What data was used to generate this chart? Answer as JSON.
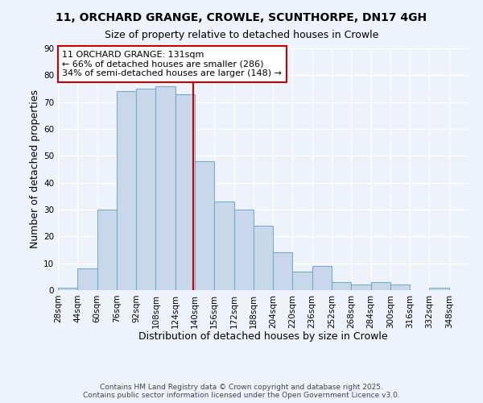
{
  "title": "11, ORCHARD GRANGE, CROWLE, SCUNTHORPE, DN17 4GH",
  "subtitle": "Size of property relative to detached houses in Crowle",
  "xlabel": "Distribution of detached houses by size in Crowle",
  "ylabel": "Number of detached properties",
  "bar_color": "#c8d8ea",
  "bar_edge_color": "#7aaac8",
  "background_color": "#eef2fb",
  "grid_color": "#ffffff",
  "bin_labels": [
    "28sqm",
    "44sqm",
    "60sqm",
    "76sqm",
    "92sqm",
    "108sqm",
    "124sqm",
    "140sqm",
    "156sqm",
    "172sqm",
    "188sqm",
    "204sqm",
    "220sqm",
    "236sqm",
    "252sqm",
    "268sqm",
    "284sqm",
    "300sqm",
    "316sqm",
    "332sqm",
    "348sqm"
  ],
  "bin_edges": [
    20,
    36,
    52,
    68,
    84,
    100,
    116,
    132,
    148,
    164,
    180,
    196,
    212,
    228,
    244,
    260,
    276,
    292,
    308,
    324,
    340,
    356
  ],
  "counts": [
    1,
    8,
    30,
    74,
    75,
    76,
    73,
    48,
    33,
    30,
    24,
    14,
    7,
    9,
    3,
    2,
    3,
    2,
    0,
    1,
    0
  ],
  "ylim": [
    0,
    90
  ],
  "yticks": [
    0,
    10,
    20,
    30,
    40,
    50,
    60,
    70,
    80,
    90
  ],
  "vline_x": 131,
  "vline_color": "#cc0000",
  "annotation_line1": "11 ORCHARD GRANGE: 131sqm",
  "annotation_line2": "← 66% of detached houses are smaller (286)",
  "annotation_line3": "34% of semi-detached houses are larger (148) →",
  "annotation_box_color": "#ffffff",
  "annotation_box_edge_color": "#cc0000",
  "footer_line1": "Contains HM Land Registry data © Crown copyright and database right 2025.",
  "footer_line2": "Contains public sector information licensed under the Open Government Licence v3.0.",
  "title_fontsize": 10,
  "subtitle_fontsize": 9,
  "axis_label_fontsize": 9,
  "tick_fontsize": 7.5,
  "annotation_fontsize": 8,
  "footer_fontsize": 6.5
}
